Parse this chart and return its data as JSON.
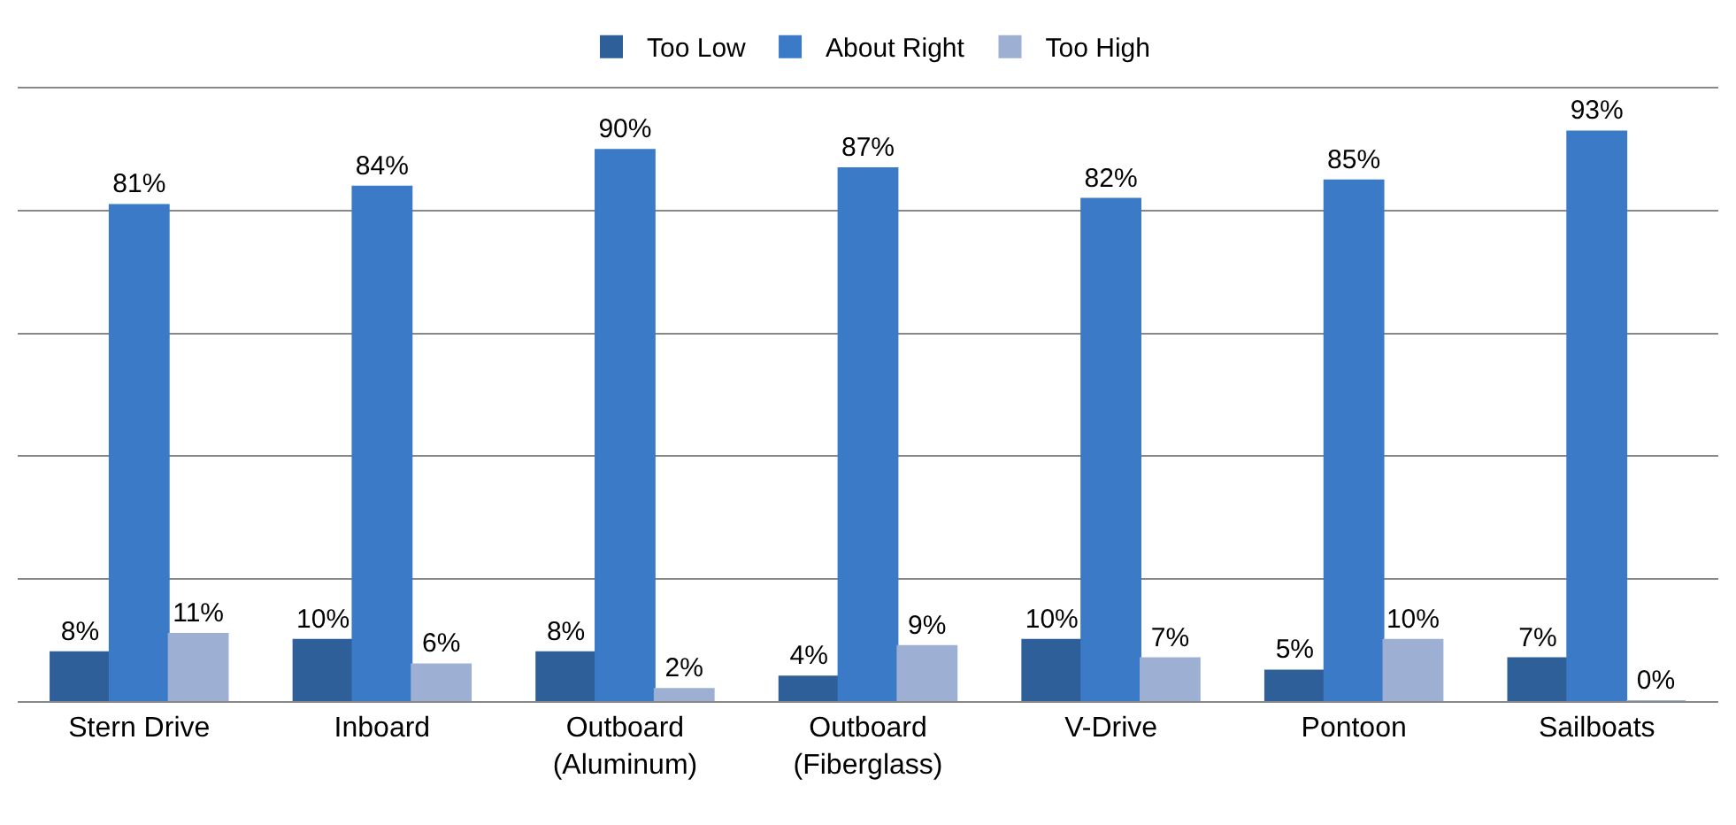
{
  "chart_data": {
    "type": "bar",
    "categories": [
      "Stern Drive",
      "Inboard",
      "Outboard\n(Aluminum)",
      "Outboard\n(Fiberglass)",
      "V-Drive",
      "Pontoon",
      "Sailboats"
    ],
    "series": [
      {
        "name": "Too Low",
        "color": "#2f5f98",
        "values": [
          8,
          10,
          8,
          4,
          10,
          5,
          7
        ],
        "value_labels": [
          "8%",
          "10%",
          "8%",
          "4%",
          "10%",
          "5%",
          "7%"
        ]
      },
      {
        "name": "About Right",
        "color": "#3b7ac6",
        "values": [
          81,
          84,
          90,
          87,
          82,
          85,
          93
        ],
        "value_labels": [
          "81%",
          "84%",
          "90%",
          "87%",
          "82%",
          "85%",
          "93%"
        ]
      },
      {
        "name": "Too High",
        "color": "#9db0d4",
        "values": [
          11,
          6,
          2,
          9,
          7,
          10,
          0
        ],
        "value_labels": [
          "11%",
          "6%",
          "2%",
          "9%",
          "7%",
          "10%",
          "0%"
        ]
      }
    ],
    "ylim": [
      0,
      100
    ],
    "yticks": [
      {
        "value": 0,
        "label": null
      },
      {
        "value": 20,
        "label": null
      },
      {
        "value": 40,
        "label": null
      },
      {
        "value": 60,
        "label": null
      },
      {
        "value": 80,
        "label": null
      },
      {
        "value": 100,
        "label": null
      }
    ],
    "tick_labels": "x",
    "grid": "y",
    "legend": "top"
  }
}
